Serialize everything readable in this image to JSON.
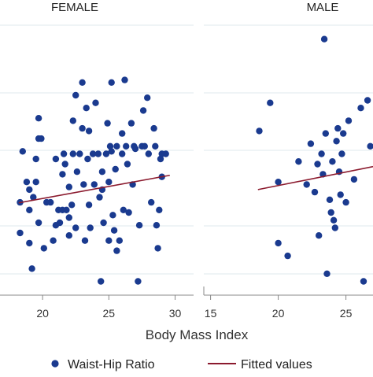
{
  "chart_data": {
    "type": "scatter",
    "xlabel": "Body Mass Index",
    "colors": {
      "points": "#1a3a8f",
      "fit": "#8b1a2e",
      "grid": "#dfe8ee",
      "axis": "#888888"
    },
    "legend": {
      "placement": "bottom",
      "items": [
        {
          "label": "Waist-Hip Ratio",
          "marker": "dot"
        },
        {
          "label": "Fitted values",
          "marker": "line"
        }
      ]
    },
    "ylim": [
      0,
      1
    ],
    "grid": "horizontal",
    "panels": [
      {
        "title": "FEMALE",
        "xlim": [
          17.5,
          30.8
        ],
        "xticks": [
          "20",
          "25",
          "30"
        ],
        "fit": {
          "x": [
            18.2,
            29.6
          ],
          "y": [
            0.328,
            0.436
          ]
        },
        "points": [
          [
            18.3,
            0.33
          ],
          [
            18.3,
            0.21
          ],
          [
            18.5,
            0.53
          ],
          [
            18.8,
            0.41
          ],
          [
            19,
            0.38
          ],
          [
            19,
            0.3
          ],
          [
            19,
            0.17
          ],
          [
            19.2,
            0.07
          ],
          [
            19.3,
            0.35
          ],
          [
            19.5,
            0.5
          ],
          [
            19.5,
            0.41
          ],
          [
            19.7,
            0.58
          ],
          [
            19.7,
            0.66
          ],
          [
            19.7,
            0.25
          ],
          [
            19.9,
            0.58
          ],
          [
            20.1,
            0.15
          ],
          [
            20.3,
            0.33
          ],
          [
            20.6,
            0.33
          ],
          [
            20.8,
            0.18
          ],
          [
            21,
            0.24
          ],
          [
            21,
            0.5
          ],
          [
            21.2,
            0.3
          ],
          [
            21.3,
            0.25
          ],
          [
            21.5,
            0.44
          ],
          [
            21.5,
            0.3
          ],
          [
            21.6,
            0.52
          ],
          [
            21.7,
            0.48
          ],
          [
            21.8,
            0.3
          ],
          [
            22,
            0.27
          ],
          [
            22,
            0.39
          ],
          [
            22,
            0.2
          ],
          [
            22.2,
            0.32
          ],
          [
            22.3,
            0.65
          ],
          [
            22.3,
            0.52
          ],
          [
            22.5,
            0.75
          ],
          [
            22.5,
            0.23
          ],
          [
            22.6,
            0.45
          ],
          [
            22.8,
            0.52
          ],
          [
            23,
            0.8
          ],
          [
            23,
            0.62
          ],
          [
            23.1,
            0.4
          ],
          [
            23.2,
            0.18
          ],
          [
            23.3,
            0.7
          ],
          [
            23.4,
            0.5
          ],
          [
            23.5,
            0.61
          ],
          [
            23.5,
            0.32
          ],
          [
            23.6,
            0.23
          ],
          [
            23.8,
            0.52
          ],
          [
            23.9,
            0.4
          ],
          [
            24,
            0.72
          ],
          [
            24.2,
            0.52
          ],
          [
            24.3,
            0.35
          ],
          [
            24.4,
            0.02
          ],
          [
            24.5,
            0.45
          ],
          [
            24.5,
            0.38
          ],
          [
            24.6,
            0.25
          ],
          [
            24.8,
            0.52
          ],
          [
            24.9,
            0.64
          ],
          [
            25,
            0.41
          ],
          [
            25,
            0.18
          ],
          [
            25.1,
            0.55
          ],
          [
            25.2,
            0.8
          ],
          [
            25.2,
            0.53
          ],
          [
            25.3,
            0.28
          ],
          [
            25.4,
            0.22
          ],
          [
            25.5,
            0.46
          ],
          [
            25.6,
            0.14
          ],
          [
            25.6,
            0.55
          ],
          [
            25.8,
            0.18
          ],
          [
            26,
            0.6
          ],
          [
            26,
            0.52
          ],
          [
            26.1,
            0.3
          ],
          [
            26.2,
            0.81
          ],
          [
            26.3,
            0.55
          ],
          [
            26.4,
            0.48
          ],
          [
            26.5,
            0.29
          ],
          [
            26.7,
            0.64
          ],
          [
            26.8,
            0.4
          ],
          [
            26.9,
            0.55
          ],
          [
            27,
            0.54
          ],
          [
            27.2,
            0.02
          ],
          [
            27.3,
            0.24
          ],
          [
            27.5,
            0.55
          ],
          [
            27.6,
            0.69
          ],
          [
            27.7,
            0.55
          ],
          [
            27.9,
            0.74
          ],
          [
            28,
            0.52
          ],
          [
            28.2,
            0.33
          ],
          [
            28.4,
            0.62
          ],
          [
            28.5,
            0.55
          ],
          [
            28.6,
            0.24
          ],
          [
            28.7,
            0.15
          ],
          [
            28.8,
            0.3
          ],
          [
            28.9,
            0.5
          ],
          [
            29,
            0.43
          ],
          [
            29,
            0.52
          ],
          [
            29.3,
            0.52
          ]
        ]
      },
      {
        "title": "MALE",
        "xlim": [
          14.5,
          27
        ],
        "xticks": [
          "15",
          "20",
          "25"
        ],
        "fit": {
          "x": [
            18.5,
            27
          ],
          "y": [
            0.38,
            0.47
          ]
        },
        "points": [
          [
            18.6,
            0.61
          ],
          [
            19.4,
            0.72
          ],
          [
            20,
            0.17
          ],
          [
            20,
            0.41
          ],
          [
            20.7,
            0.12
          ],
          [
            21.5,
            0.49
          ],
          [
            22.1,
            0.4
          ],
          [
            22.4,
            0.56
          ],
          [
            22.7,
            0.37
          ],
          [
            22.9,
            0.48
          ],
          [
            23,
            0.2
          ],
          [
            23.2,
            0.52
          ],
          [
            23.3,
            0.44
          ],
          [
            23.4,
            0.97
          ],
          [
            23.5,
            0.6
          ],
          [
            23.6,
            0.05
          ],
          [
            23.8,
            0.34
          ],
          [
            23.9,
            0.29
          ],
          [
            24,
            0.49
          ],
          [
            24.1,
            0.26
          ],
          [
            24.2,
            0.23
          ],
          [
            24.3,
            0.57
          ],
          [
            24.4,
            0.62
          ],
          [
            24.5,
            0.45
          ],
          [
            24.6,
            0.36
          ],
          [
            24.7,
            0.52
          ],
          [
            24.8,
            0.6
          ],
          [
            25,
            0.33
          ],
          [
            25.2,
            0.65
          ],
          [
            25.6,
            0.42
          ],
          [
            26.1,
            0.7
          ],
          [
            26.3,
            0.02
          ],
          [
            26.6,
            0.73
          ],
          [
            26.8,
            0.55
          ]
        ]
      }
    ]
  }
}
